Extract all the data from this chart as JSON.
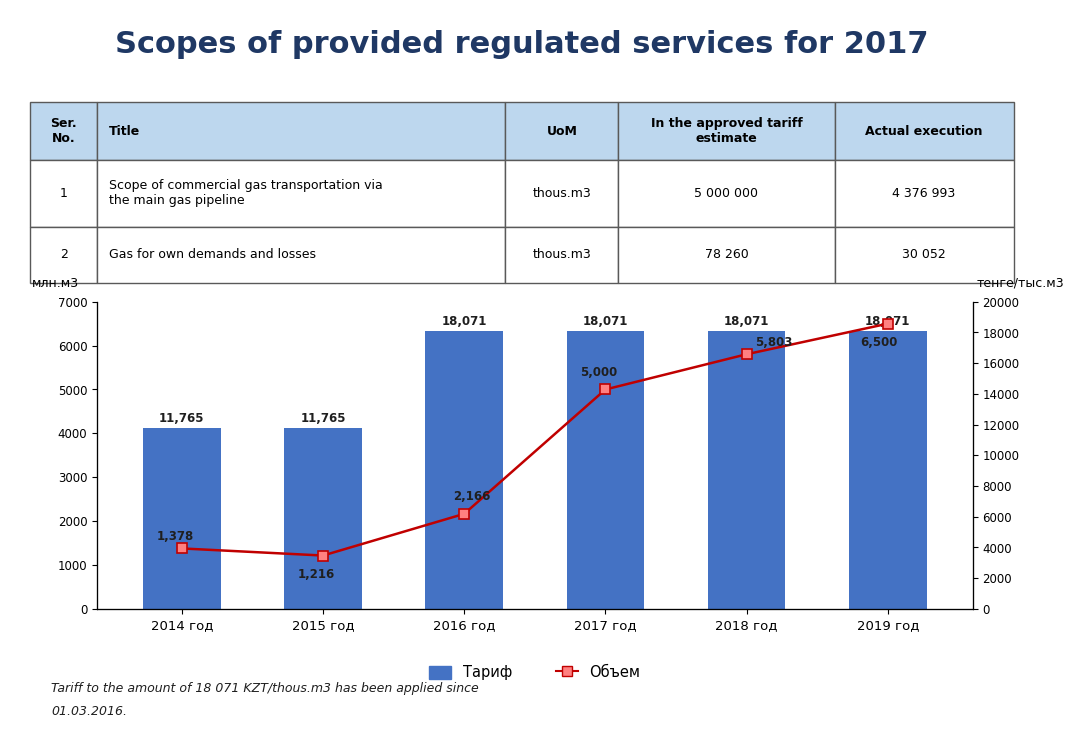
{
  "title": "Scopes of provided regulated services for 2017",
  "title_color": "#1F3864",
  "title_fontsize": 22,
  "table_headers": [
    "Ser.\nNo.",
    "Title",
    "UoM",
    "In the approved tariff\nestimate",
    "Actual execution"
  ],
  "table_rows": [
    [
      "1",
      "Scope of commercial gas transportation via\nthe main gas pipeline",
      "thous.m3",
      "5 000 000",
      "4 376 993"
    ],
    [
      "2",
      "Gas for own demands and losses",
      "thous.m3",
      "78 260",
      "30 052"
    ]
  ],
  "header_bg": "#BDD7EE",
  "row_bg": "#FFFFFF",
  "border_color": "#595959",
  "years": [
    "2014 год",
    "2015 год",
    "2016 год",
    "2017 год",
    "2018 год",
    "2019 год"
  ],
  "bar_values": [
    11765,
    11765,
    18071,
    18071,
    18071,
    18071
  ],
  "bar_color": "#4472C4",
  "bar_labels": [
    "11,765",
    "11,765",
    "18,071",
    "18,071",
    "18,071",
    "18,071"
  ],
  "line_values": [
    1378,
    1216,
    2166,
    5000,
    5803,
    6500
  ],
  "line_labels": [
    "1,378",
    "1,216",
    "2,166",
    "5,000",
    "5,803",
    "6,500"
  ],
  "line_color": "#C00000",
  "marker_face_color": "#FF8080",
  "left_ylabel": "млн.м3",
  "right_ylabel": "тенге/тыс.м3",
  "left_ylim": [
    0,
    7000
  ],
  "left_yticks": [
    0,
    1000,
    2000,
    3000,
    4000,
    5000,
    6000,
    7000
  ],
  "right_ylim": [
    0,
    20000
  ],
  "right_yticks": [
    0,
    2000,
    4000,
    6000,
    8000,
    10000,
    12000,
    14000,
    16000,
    18000,
    20000
  ],
  "legend_labels": [
    "Тариф",
    "Объем"
  ],
  "footnote_line1": "Tariff to the amount of 18 071 KZT/thous.m3 has been applied since",
  "footnote_line2": "01.03.2016.",
  "bg_color": "#FFFFFF"
}
